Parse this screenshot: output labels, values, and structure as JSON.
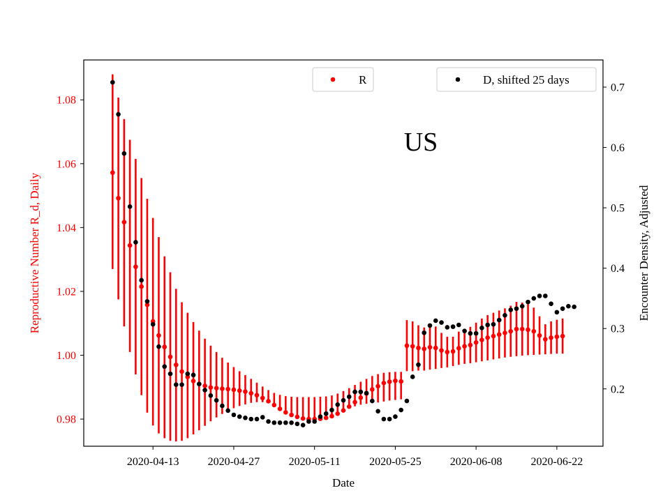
{
  "chart_data": {
    "type": "scatter",
    "annotation": "US",
    "xlabel": "Date",
    "ylabel_left": "Reproductive Number R_d, Daily",
    "ylabel_right": "Encounter Density, Adjusted",
    "x_start": "2020-04-06",
    "x_ticks": [
      "2020-04-13",
      "2020-04-27",
      "2020-05-11",
      "2020-05-25",
      "2020-06-08",
      "2020-06-22"
    ],
    "x_range": [
      "2020-04-01",
      "2020-06-30"
    ],
    "y_left_range": [
      0.9715,
      1.0925
    ],
    "y_left_ticks": [
      0.98,
      1.0,
      1.02,
      1.04,
      1.06,
      1.08
    ],
    "y_right_range": [
      0.105,
      0.745
    ],
    "y_right_ticks": [
      0.2,
      0.3,
      0.4,
      0.5,
      0.6,
      0.7
    ],
    "left_color": "#ff0000",
    "legend_r": {
      "label": "R",
      "color": "#ff0000",
      "position": "top-center"
    },
    "legend_d": {
      "label": "D, shifted 25 days",
      "color": "#000000",
      "position": "top-right"
    },
    "series": [
      {
        "name": "R",
        "axis": "left",
        "color": "#ff0000",
        "y": [
          1.0572,
          1.0492,
          1.0417,
          1.0344,
          1.0277,
          1.0215,
          1.0158,
          1.0106,
          1.0062,
          1.0026,
          0.9995,
          0.997,
          0.9949,
          0.9932,
          0.9919,
          0.991,
          0.9904,
          0.9899,
          0.9897,
          0.9895,
          0.9894,
          0.9892,
          0.9889,
          0.9886,
          0.9881,
          0.9875,
          0.9866,
          0.9856,
          0.9844,
          0.9832,
          0.9821,
          0.9813,
          0.9807,
          0.9802,
          0.98,
          0.98,
          0.9801,
          0.9804,
          0.9809,
          0.9817,
          0.9827,
          0.9839,
          0.9853,
          0.9867,
          0.988,
          0.9893,
          0.9903,
          0.9913,
          0.9917,
          0.992,
          0.9918,
          1.003,
          1.0028,
          1.0023,
          1.002,
          1.0025,
          1.0023,
          1.0015,
          1.001,
          1.0012,
          1.0022,
          1.0028,
          1.0032,
          1.004,
          1.0048,
          1.0055,
          1.006,
          1.0065,
          1.007,
          1.0075,
          1.0082,
          1.0082,
          1.008,
          1.0075,
          1.0062,
          1.005,
          1.0055,
          1.0058,
          1.006
        ],
        "y_low": [
          1.027,
          1.0175,
          1.009,
          1.001,
          0.994,
          0.9875,
          0.982,
          0.978,
          0.9755,
          0.974,
          0.9732,
          0.973,
          0.9732,
          0.974,
          0.9752,
          0.9765,
          0.9779,
          0.9793,
          0.9805,
          0.9816,
          0.9826,
          0.9834,
          0.9841,
          0.9846,
          0.9851,
          0.9853,
          0.9853,
          0.985,
          0.9845,
          0.9837,
          0.9828,
          0.982,
          0.9812,
          0.9806,
          0.9802,
          0.98,
          0.9801,
          0.9804,
          0.9809,
          0.9816,
          0.9825,
          0.9833,
          0.984,
          0.9845,
          0.9848,
          0.985,
          0.9852,
          0.9855,
          0.9858,
          0.986,
          0.9862,
          0.995,
          0.995,
          0.9952,
          0.9952,
          0.9955,
          0.9957,
          0.996,
          0.9962,
          0.9966,
          0.997,
          0.9973,
          0.9975,
          0.9978,
          0.9981,
          0.9984,
          0.9987,
          0.999,
          0.9993,
          0.9995,
          0.9997,
          0.9999,
          1.0,
          1.0001,
          1.0002,
          1.0003,
          1.0004,
          1.0005,
          1.0005
        ],
        "y_high": [
          1.088,
          1.0807,
          1.074,
          1.0675,
          1.0615,
          1.0555,
          1.049,
          1.043,
          1.037,
          1.031,
          1.026,
          1.0208,
          1.0166,
          1.0133,
          1.0104,
          1.0077,
          1.0052,
          1.003,
          1.001,
          0.9992,
          0.9977,
          0.9963,
          0.995,
          0.9938,
          0.9926,
          0.9914,
          0.9902,
          0.9891,
          0.9882,
          0.9876,
          0.9872,
          0.987,
          0.9869,
          0.9869,
          0.9869,
          0.9869,
          0.987,
          0.9871,
          0.9874,
          0.988,
          0.9888,
          0.9897,
          0.9907,
          0.9917,
          0.9926,
          0.9935,
          0.9941,
          0.9945,
          0.9947,
          0.9948,
          0.9948,
          1.011,
          1.0106,
          1.0094,
          1.0087,
          1.0095,
          1.009,
          1.007,
          1.0058,
          1.0058,
          1.0074,
          1.0083,
          1.0089,
          1.0102,
          1.0115,
          1.0126,
          1.0133,
          1.014,
          1.0147,
          1.0155,
          1.0167,
          1.0165,
          1.016,
          1.0149,
          1.0122,
          1.0097,
          1.0106,
          1.0111,
          1.0115
        ]
      },
      {
        "name": "D, shifted 25 days",
        "axis": "right",
        "color": "#000000",
        "y": [
          0.708,
          0.655,
          0.59,
          0.502,
          0.443,
          0.38,
          0.345,
          0.307,
          0.27,
          0.237,
          0.225,
          0.207,
          0.207,
          0.225,
          0.223,
          0.208,
          0.198,
          0.189,
          0.181,
          0.172,
          0.164,
          0.157,
          0.154,
          0.152,
          0.15,
          0.15,
          0.153,
          0.146,
          0.144,
          0.144,
          0.144,
          0.144,
          0.142,
          0.14,
          0.146,
          0.146,
          0.154,
          0.159,
          0.165,
          0.174,
          0.181,
          0.187,
          0.195,
          0.195,
          0.193,
          0.18,
          0.163,
          0.15,
          0.15,
          0.154,
          0.165,
          0.18,
          0.22,
          0.24,
          0.293,
          0.305,
          0.313,
          0.31,
          0.302,
          0.303,
          0.306,
          0.296,
          0.292,
          0.292,
          0.301,
          0.306,
          0.307,
          0.314,
          0.322,
          0.331,
          0.333,
          0.337,
          0.344,
          0.35,
          0.354,
          0.354,
          0.341,
          0.327,
          0.333,
          0.337,
          0.336
        ]
      }
    ]
  }
}
